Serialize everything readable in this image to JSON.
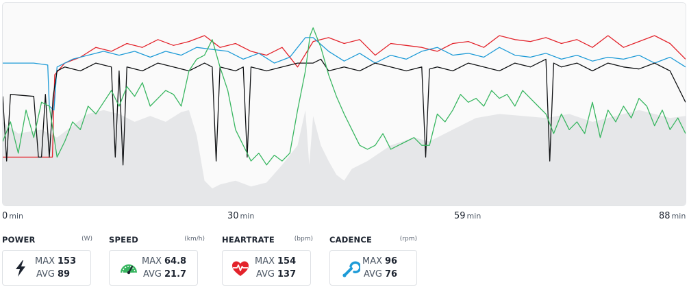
{
  "chart_data": {
    "type": "line",
    "x_unit": "min",
    "x_range": [
      0,
      88
    ],
    "x_ticks": [
      {
        "value": 0,
        "label": "0"
      },
      {
        "value": 29.5,
        "label": "30"
      },
      {
        "value": 59,
        "label": "59"
      },
      {
        "value": 88,
        "label": "88"
      }
    ],
    "grid": false,
    "legend": "none",
    "series": [
      {
        "key": "elevation",
        "kind": "area",
        "color": "#e6e7e9",
        "x": [
          0,
          2,
          5,
          7,
          9,
          11,
          13,
          15,
          17,
          19,
          21,
          23,
          24,
          25,
          26,
          27,
          28,
          30,
          32,
          34,
          36,
          37,
          38,
          39,
          39.5,
          40,
          41,
          42,
          43,
          44,
          45,
          47,
          50,
          53,
          55,
          58,
          61,
          64,
          67,
          70,
          73,
          76,
          79,
          82,
          84,
          86,
          88
        ],
        "y": [
          0.42,
          0.36,
          0.38,
          0.34,
          0.4,
          0.46,
          0.48,
          0.46,
          0.42,
          0.45,
          0.42,
          0.47,
          0.48,
          0.35,
          0.12,
          0.08,
          0.1,
          0.12,
          0.09,
          0.11,
          0.2,
          0.25,
          0.3,
          0.48,
          0.2,
          0.45,
          0.3,
          0.22,
          0.15,
          0.12,
          0.18,
          0.22,
          0.3,
          0.34,
          0.32,
          0.38,
          0.44,
          0.46,
          0.45,
          0.44,
          0.46,
          0.42,
          0.45,
          0.48,
          0.46,
          0.44,
          0.45
        ]
      },
      {
        "key": "heartrate",
        "kind": "line",
        "color": "#e3232b",
        "x": [
          0,
          6.4,
          6.7,
          8,
          10,
          12,
          14,
          16,
          18,
          20,
          22,
          24,
          26,
          28,
          30,
          32,
          34,
          36,
          38,
          40,
          42,
          44,
          46,
          48,
          50,
          52,
          54,
          56,
          58,
          60,
          62,
          64,
          66,
          68,
          70,
          72,
          74,
          76,
          78,
          80,
          82,
          84,
          86,
          88
        ],
        "y": [
          0.24,
          0.24,
          0.66,
          0.72,
          0.75,
          0.8,
          0.78,
          0.82,
          0.8,
          0.84,
          0.81,
          0.83,
          0.86,
          0.8,
          0.82,
          0.78,
          0.76,
          0.8,
          0.7,
          0.83,
          0.85,
          0.82,
          0.84,
          0.76,
          0.82,
          0.81,
          0.8,
          0.78,
          0.82,
          0.83,
          0.8,
          0.86,
          0.84,
          0.83,
          0.85,
          0.82,
          0.84,
          0.8,
          0.86,
          0.8,
          0.83,
          0.86,
          0.82,
          0.74
        ]
      },
      {
        "key": "speed",
        "kind": "line",
        "color": "#1e9bd7",
        "x": [
          0,
          4,
          5.8,
          6,
          6.6,
          7,
          9,
          11,
          13,
          15,
          17,
          19,
          21,
          23,
          25,
          27,
          29,
          31,
          33,
          35,
          37,
          38,
          39,
          40,
          42,
          44,
          46,
          48,
          50,
          52,
          54,
          56,
          58,
          60,
          62,
          64,
          66,
          68,
          70,
          72,
          74,
          76,
          78,
          80,
          82,
          84,
          86,
          88
        ],
        "y": [
          0.72,
          0.72,
          0.71,
          0.5,
          0.48,
          0.7,
          0.74,
          0.76,
          0.78,
          0.76,
          0.78,
          0.75,
          0.78,
          0.76,
          0.8,
          0.79,
          0.78,
          0.74,
          0.77,
          0.72,
          0.75,
          0.8,
          0.85,
          0.85,
          0.78,
          0.73,
          0.77,
          0.72,
          0.76,
          0.74,
          0.78,
          0.8,
          0.76,
          0.77,
          0.75,
          0.8,
          0.76,
          0.75,
          0.77,
          0.74,
          0.76,
          0.73,
          0.75,
          0.74,
          0.76,
          0.72,
          0.75,
          0.7
        ]
      },
      {
        "key": "power",
        "kind": "line",
        "color": "#0f1113",
        "x": [
          0,
          0.5,
          1,
          4,
          4.6,
          5,
          5.5,
          6,
          6.5,
          7,
          8,
          10,
          12,
          14,
          14.5,
          15,
          15.5,
          16,
          18,
          20,
          22,
          24,
          26,
          27,
          27.5,
          28,
          30,
          31,
          31.5,
          32,
          34,
          36,
          38,
          40,
          41,
          42,
          44,
          46,
          48,
          50,
          52,
          54,
          54.5,
          55,
          56,
          58,
          60,
          62,
          64,
          66,
          68,
          70,
          70.5,
          71,
          72,
          74,
          76,
          78,
          80,
          82,
          84,
          86,
          88
        ],
        "y": [
          0.55,
          0.22,
          0.56,
          0.55,
          0.24,
          0.24,
          0.56,
          0.24,
          0.55,
          0.68,
          0.7,
          0.68,
          0.72,
          0.7,
          0.24,
          0.68,
          0.2,
          0.7,
          0.68,
          0.72,
          0.7,
          0.68,
          0.72,
          0.7,
          0.22,
          0.7,
          0.68,
          0.7,
          0.24,
          0.7,
          0.68,
          0.7,
          0.72,
          0.72,
          0.74,
          0.68,
          0.7,
          0.68,
          0.72,
          0.7,
          0.68,
          0.7,
          0.24,
          0.69,
          0.7,
          0.68,
          0.72,
          0.7,
          0.68,
          0.72,
          0.7,
          0.74,
          0.22,
          0.72,
          0.7,
          0.72,
          0.68,
          0.72,
          0.7,
          0.69,
          0.72,
          0.68,
          0.52
        ]
      },
      {
        "key": "cadence",
        "kind": "line",
        "color": "#38b660",
        "x": [
          0,
          1,
          2,
          3,
          4,
          5,
          6,
          7,
          8,
          9,
          10,
          11,
          12,
          13,
          14,
          15,
          16,
          17,
          18,
          19,
          20,
          21,
          22,
          23,
          24,
          25,
          26,
          27,
          28,
          29,
          30,
          31,
          32,
          33,
          34,
          35,
          36,
          37,
          38,
          39,
          39.6,
          40,
          41,
          42,
          43,
          44,
          45,
          46,
          47,
          48,
          49,
          50,
          51,
          52,
          53,
          54,
          55,
          56,
          57,
          58,
          59,
          60,
          61,
          62,
          63,
          64,
          65,
          66,
          67,
          68,
          69,
          70,
          71,
          72,
          73,
          74,
          75,
          76,
          77,
          78,
          79,
          80,
          81,
          82,
          83,
          84,
          85,
          86,
          87,
          88
        ],
        "y": [
          0.32,
          0.42,
          0.26,
          0.48,
          0.34,
          0.52,
          0.5,
          0.24,
          0.32,
          0.42,
          0.38,
          0.5,
          0.46,
          0.52,
          0.58,
          0.5,
          0.6,
          0.55,
          0.62,
          0.5,
          0.54,
          0.58,
          0.56,
          0.5,
          0.68,
          0.74,
          0.76,
          0.84,
          0.7,
          0.58,
          0.38,
          0.3,
          0.22,
          0.26,
          0.2,
          0.25,
          0.22,
          0.26,
          0.48,
          0.68,
          0.86,
          0.9,
          0.8,
          0.66,
          0.55,
          0.46,
          0.38,
          0.3,
          0.28,
          0.3,
          0.36,
          0.28,
          0.3,
          0.32,
          0.34,
          0.3,
          0.3,
          0.46,
          0.42,
          0.48,
          0.56,
          0.52,
          0.54,
          0.5,
          0.58,
          0.54,
          0.56,
          0.5,
          0.58,
          0.54,
          0.5,
          0.46,
          0.36,
          0.46,
          0.38,
          0.42,
          0.36,
          0.52,
          0.34,
          0.48,
          0.42,
          0.5,
          0.44,
          0.54,
          0.5,
          0.4,
          0.48,
          0.38,
          0.44,
          0.36
        ]
      }
    ]
  },
  "axis": {
    "unit_label": "min"
  },
  "metrics": [
    {
      "key": "power",
      "title": "POWER",
      "unit": "(W)",
      "max_label": "MAX",
      "max": "153",
      "avg_label": "AVG",
      "avg": "89",
      "icon": "lightning-bolt-icon",
      "icon_color": "#1d2430"
    },
    {
      "key": "speed",
      "title": "SPEED",
      "unit": "(km/h)",
      "max_label": "MAX",
      "max": "64.8",
      "avg_label": "AVG",
      "avg": "21.7",
      "icon": "speedometer-icon",
      "icon_color": "#38b660"
    },
    {
      "key": "heartrate",
      "title": "HEARTRATE",
      "unit": "(bpm)",
      "max_label": "MAX",
      "max": "154",
      "avg_label": "AVG",
      "avg": "137",
      "icon": "heart-pulse-icon",
      "icon_color": "#e3232b"
    },
    {
      "key": "cadence",
      "title": "CADENCE",
      "unit": "(rpm)",
      "max_label": "MAX",
      "max": "96",
      "avg_label": "AVG",
      "avg": "76",
      "icon": "cadence-wrench-icon",
      "icon_color": "#1e9bd7"
    }
  ]
}
